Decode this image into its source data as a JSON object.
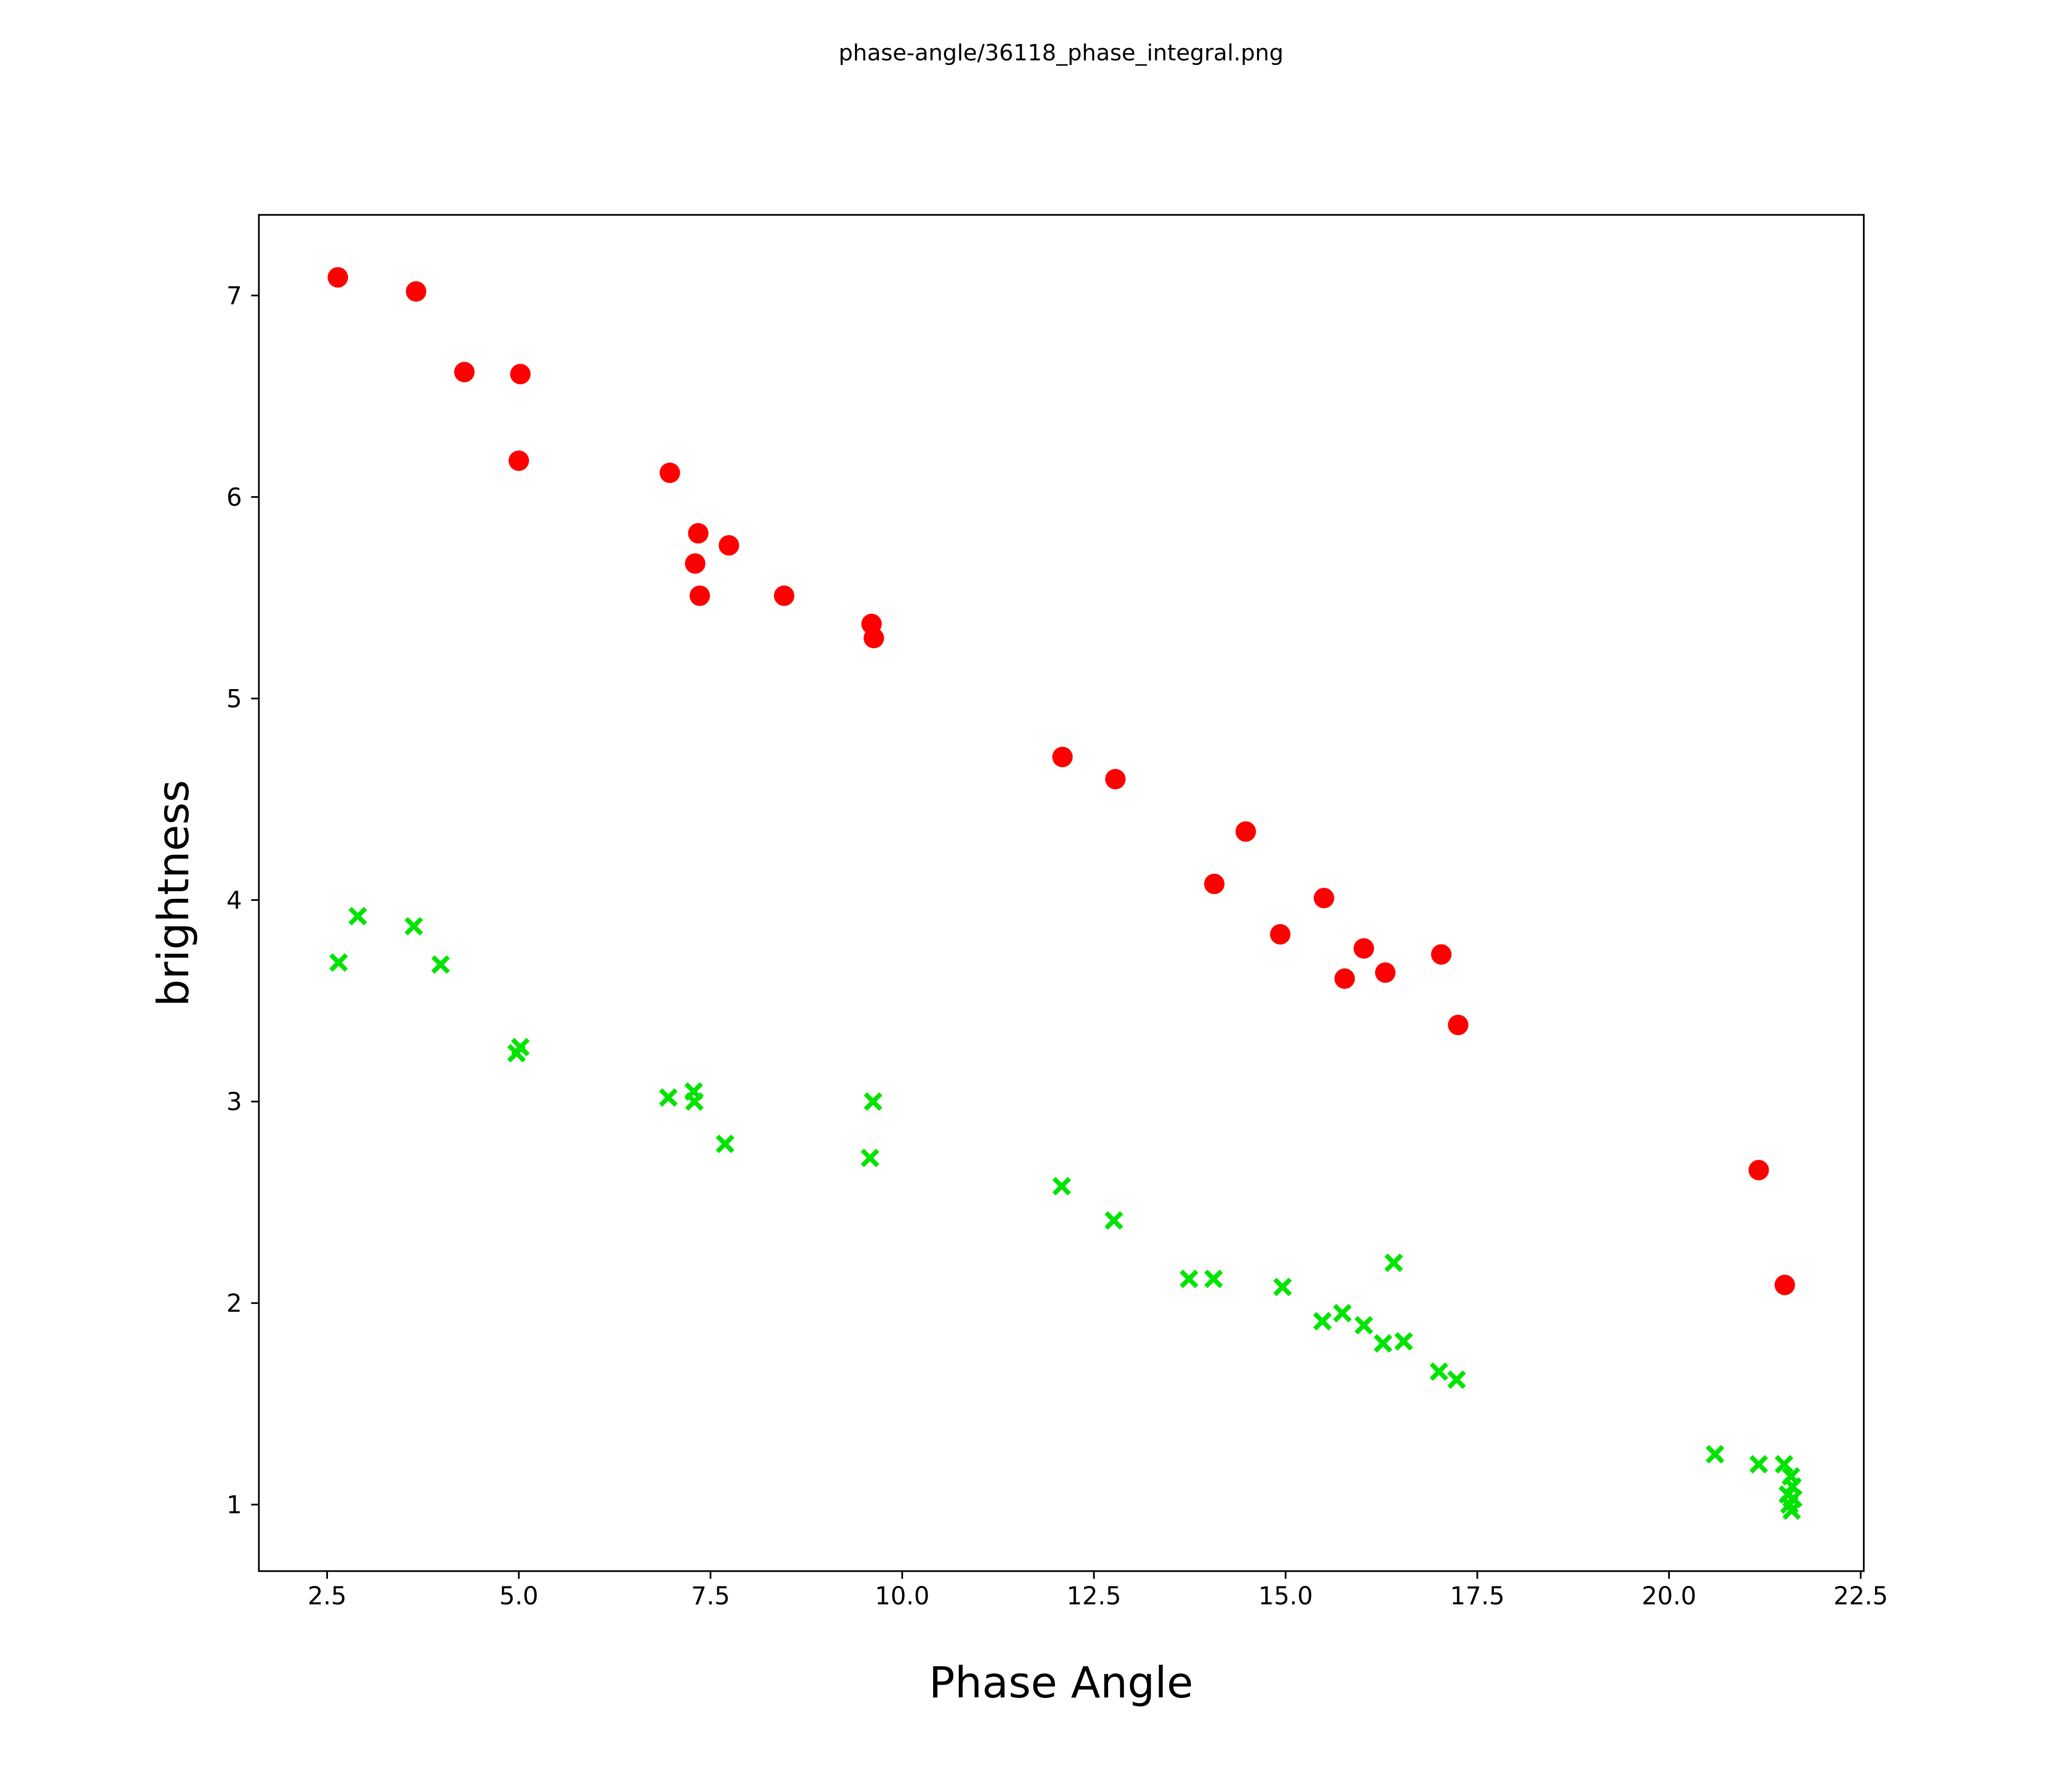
{
  "chart_data": {
    "type": "scatter",
    "title": "phase-angle/36118_phase_integral.png",
    "xlabel": "Phase Angle",
    "ylabel": "brightness",
    "xlim": [
      1.61,
      22.54
    ],
    "ylim": [
      0.67,
      7.4
    ],
    "grid": false,
    "legend_position": "none",
    "xticks": [
      2.5,
      5.0,
      7.5,
      10.0,
      12.5,
      15.0,
      17.5,
      20.0,
      22.5
    ],
    "xtick_labels": [
      "2.5",
      "5.0",
      "7.5",
      "10.0",
      "12.5",
      "15.0",
      "17.5",
      "20.0",
      "22.5"
    ],
    "yticks": [
      1,
      2,
      3,
      4,
      5,
      6,
      7
    ],
    "ytick_labels": [
      "1",
      "2",
      "3",
      "4",
      "5",
      "6",
      "7"
    ],
    "series": [
      {
        "name": "red-circles",
        "marker": "circle",
        "color": "#ff0000",
        "marker_diameter_px": 40,
        "points": [
          [
            2.64,
            7.09
          ],
          [
            3.66,
            7.02
          ],
          [
            4.29,
            6.62
          ],
          [
            5.02,
            6.61
          ],
          [
            5.0,
            6.18
          ],
          [
            6.97,
            6.12
          ],
          [
            7.34,
            5.82
          ],
          [
            7.74,
            5.76
          ],
          [
            7.3,
            5.67
          ],
          [
            7.36,
            5.51
          ],
          [
            8.46,
            5.51
          ],
          [
            9.6,
            5.37
          ],
          [
            9.63,
            5.3
          ],
          [
            12.09,
            4.71
          ],
          [
            12.78,
            4.6
          ],
          [
            14.48,
            4.34
          ],
          [
            14.07,
            4.08
          ],
          [
            15.5,
            4.01
          ],
          [
            14.93,
            3.83
          ],
          [
            16.02,
            3.76
          ],
          [
            17.03,
            3.73
          ],
          [
            16.3,
            3.64
          ],
          [
            15.77,
            3.61
          ],
          [
            17.25,
            3.38
          ],
          [
            21.17,
            2.66
          ],
          [
            21.51,
            2.09
          ]
        ]
      },
      {
        "name": "green-crosses",
        "marker": "x",
        "color": "#00e400",
        "marker_diameter_px": 30,
        "points": [
          [
            2.9,
            3.92
          ],
          [
            3.63,
            3.87
          ],
          [
            2.65,
            3.69
          ],
          [
            3.98,
            3.68
          ],
          [
            5.02,
            3.27
          ],
          [
            4.97,
            3.24
          ],
          [
            6.95,
            3.02
          ],
          [
            7.28,
            3.05
          ],
          [
            7.29,
            3.0
          ],
          [
            7.69,
            2.79
          ],
          [
            9.62,
            3.0
          ],
          [
            9.58,
            2.72
          ],
          [
            12.08,
            2.58
          ],
          [
            12.76,
            2.41
          ],
          [
            13.74,
            2.12
          ],
          [
            14.06,
            2.12
          ],
          [
            14.96,
            2.08
          ],
          [
            16.41,
            2.2
          ],
          [
            15.48,
            1.91
          ],
          [
            15.74,
            1.95
          ],
          [
            16.02,
            1.89
          ],
          [
            16.27,
            1.8
          ],
          [
            16.54,
            1.81
          ],
          [
            17.0,
            1.66
          ],
          [
            17.23,
            1.62
          ],
          [
            20.6,
            1.25
          ],
          [
            21.17,
            1.2
          ],
          [
            21.5,
            1.2
          ],
          [
            21.59,
            1.14
          ],
          [
            21.61,
            1.09
          ],
          [
            21.55,
            1.05
          ],
          [
            21.62,
            1.03
          ],
          [
            21.57,
            1.0
          ],
          [
            21.6,
            0.97
          ]
        ]
      }
    ]
  }
}
